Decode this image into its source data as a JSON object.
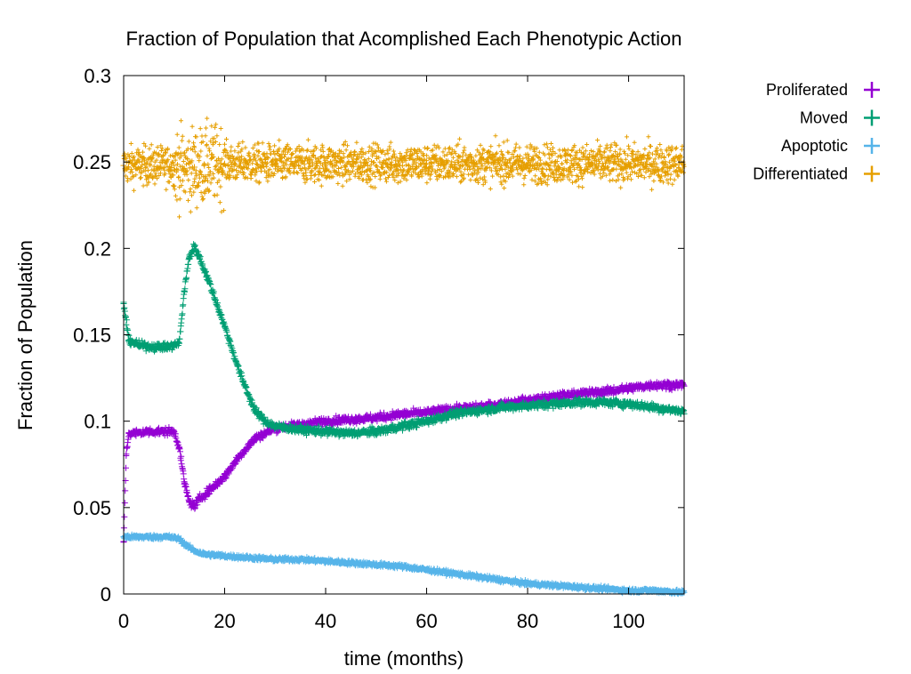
{
  "chart_data": {
    "type": "scatter",
    "title": "Fraction of Population that Acomplished Each Phenotypic Action",
    "xlabel": "time (months)",
    "ylabel": "Fraction of Population",
    "xlim": [
      0,
      111
    ],
    "ylim": [
      0,
      0.3
    ],
    "x_ticks": [
      0,
      20,
      40,
      60,
      80,
      100
    ],
    "x_tick_labels": [
      "0",
      "20",
      "40",
      "60",
      "80",
      "100"
    ],
    "y_ticks": [
      0,
      0.05,
      0.1,
      0.15,
      0.2,
      0.25,
      0.3
    ],
    "y_tick_labels": [
      "0",
      "0.05",
      "0.1",
      "0.15",
      "0.2",
      "0.25",
      "0.3"
    ],
    "grid": false,
    "legend_position": "outside-top-right",
    "marker": "+",
    "series": [
      {
        "name": "Proliferated",
        "color": "#9400d3",
        "x": [
          0,
          0.5,
          1,
          2,
          5,
          8,
          10,
          11,
          12,
          13,
          14,
          15,
          17,
          20,
          23,
          26,
          30,
          35,
          40,
          45,
          50,
          55,
          60,
          65,
          70,
          75,
          80,
          85,
          90,
          95,
          100,
          105,
          110
        ],
        "values": [
          0.03,
          0.08,
          0.093,
          0.093,
          0.094,
          0.094,
          0.094,
          0.085,
          0.065,
          0.053,
          0.051,
          0.055,
          0.06,
          0.068,
          0.08,
          0.09,
          0.096,
          0.098,
          0.1,
          0.101,
          0.102,
          0.104,
          0.105,
          0.107,
          0.108,
          0.11,
          0.112,
          0.114,
          0.116,
          0.117,
          0.119,
          0.121,
          0.121
        ]
      },
      {
        "name": "Moved",
        "color": "#009e73",
        "x": [
          0,
          1,
          3,
          6,
          9,
          11,
          12,
          13,
          14,
          15,
          17,
          20,
          23,
          26,
          28,
          30,
          35,
          40,
          45,
          50,
          55,
          60,
          65,
          70,
          75,
          80,
          85,
          90,
          95,
          100,
          105,
          110
        ],
        "values": [
          0.168,
          0.147,
          0.144,
          0.143,
          0.143,
          0.145,
          0.175,
          0.195,
          0.201,
          0.195,
          0.18,
          0.155,
          0.128,
          0.106,
          0.1,
          0.097,
          0.095,
          0.094,
          0.093,
          0.094,
          0.097,
          0.1,
          0.104,
          0.106,
          0.108,
          0.109,
          0.11,
          0.111,
          0.111,
          0.11,
          0.108,
          0.106
        ]
      },
      {
        "name": "Apoptotic",
        "color": "#56b4e9",
        "x": [
          0,
          3,
          6,
          9,
          11,
          12,
          14,
          16,
          20,
          25,
          30,
          35,
          40,
          45,
          50,
          55,
          60,
          65,
          70,
          75,
          80,
          85,
          90,
          95,
          100,
          105,
          110
        ],
        "values": [
          0.033,
          0.033,
          0.033,
          0.033,
          0.032,
          0.029,
          0.025,
          0.023,
          0.022,
          0.021,
          0.02,
          0.02,
          0.019,
          0.018,
          0.017,
          0.016,
          0.014,
          0.012,
          0.01,
          0.008,
          0.006,
          0.005,
          0.004,
          0.003,
          0.002,
          0.002,
          0.001
        ]
      },
      {
        "name": "Differentiated",
        "color": "#e69f00",
        "x": [
          0,
          10,
          12,
          14,
          16,
          20,
          30,
          40,
          60,
          80,
          100,
          110
        ],
        "values": [
          0.248,
          0.248,
          0.246,
          0.247,
          0.248,
          0.249,
          0.249,
          0.249,
          0.249,
          0.249,
          0.249,
          0.249
        ]
      }
    ]
  }
}
